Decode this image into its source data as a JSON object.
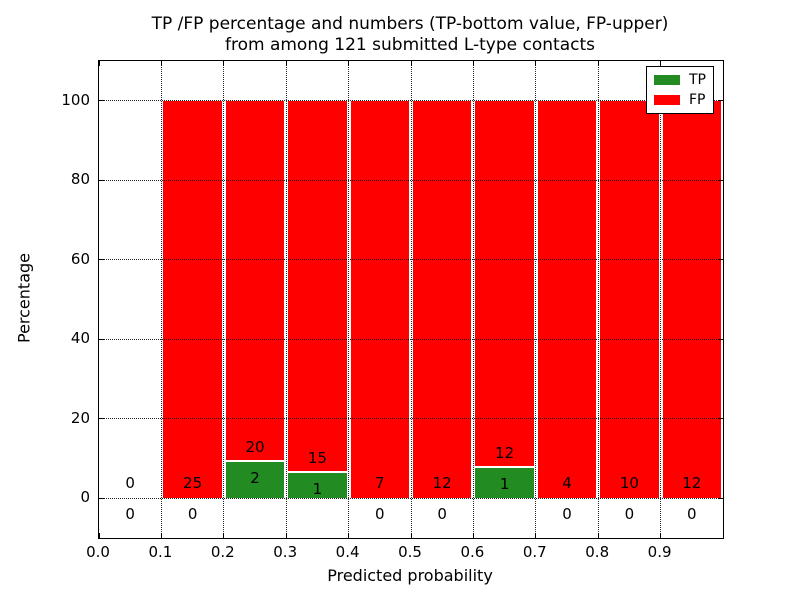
{
  "title": {
    "line1": "TP /FP percentage and numbers (TP-bottom value, FP-upper)",
    "line2": "from among 121 submitted L-type contacts"
  },
  "chart_data": {
    "type": "bar",
    "subtype": "stacked-percentage-histogram",
    "title": "TP /FP percentage and numbers (TP-bottom value, FP-upper)\nfrom among 121 submitted L-type contacts",
    "xlabel": "Predicted probability",
    "ylabel": "Percentage",
    "xlim": [
      0.0,
      1.0
    ],
    "ylim": [
      -10,
      110
    ],
    "xticks": [
      0.0,
      0.1,
      0.2,
      0.3,
      0.4,
      0.5,
      0.6,
      0.7,
      0.8,
      0.9
    ],
    "xtick_labels": [
      "0.0",
      "0.1",
      "0.2",
      "0.3",
      "0.4",
      "0.5",
      "0.6",
      "0.7",
      "0.8",
      "0.9"
    ],
    "yticks": [
      0,
      20,
      40,
      60,
      80,
      100
    ],
    "grid": true,
    "grid_style": "dotted",
    "total_contacts": 121,
    "legend": {
      "position": "upper right",
      "entries": [
        {
          "label": "TP",
          "color": "#228b22"
        },
        {
          "label": "FP",
          "color": "#ff0000"
        }
      ]
    },
    "colors": {
      "tp": "#228b22",
      "fp": "#ff0000",
      "bar_edge": "#ffffff",
      "grid": "#000000"
    },
    "bins": [
      {
        "range": [
          0.0,
          0.1
        ],
        "tp": 0,
        "fp": 0,
        "tp_pct": 0,
        "fp_pct": 0
      },
      {
        "range": [
          0.1,
          0.2
        ],
        "tp": 0,
        "fp": 25,
        "tp_pct": 0,
        "fp_pct": 100
      },
      {
        "range": [
          0.2,
          0.3
        ],
        "tp": 2,
        "fp": 20,
        "tp_pct": 9.09,
        "fp_pct": 90.91
      },
      {
        "range": [
          0.3,
          0.4
        ],
        "tp": 1,
        "fp": 15,
        "tp_pct": 6.25,
        "fp_pct": 93.75
      },
      {
        "range": [
          0.4,
          0.5
        ],
        "tp": 0,
        "fp": 7,
        "tp_pct": 0,
        "fp_pct": 100
      },
      {
        "range": [
          0.5,
          0.6
        ],
        "tp": 0,
        "fp": 12,
        "tp_pct": 0,
        "fp_pct": 100
      },
      {
        "range": [
          0.6,
          0.7
        ],
        "tp": 1,
        "fp": 12,
        "tp_pct": 7.69,
        "fp_pct": 92.31
      },
      {
        "range": [
          0.7,
          0.8
        ],
        "tp": 0,
        "fp": 4,
        "tp_pct": 0,
        "fp_pct": 100
      },
      {
        "range": [
          0.8,
          0.9
        ],
        "tp": 0,
        "fp": 10,
        "tp_pct": 0,
        "fp_pct": 100
      },
      {
        "range": [
          0.9,
          1.0
        ],
        "tp": 0,
        "fp": 12,
        "tp_pct": 0,
        "fp_pct": 100
      }
    ]
  }
}
